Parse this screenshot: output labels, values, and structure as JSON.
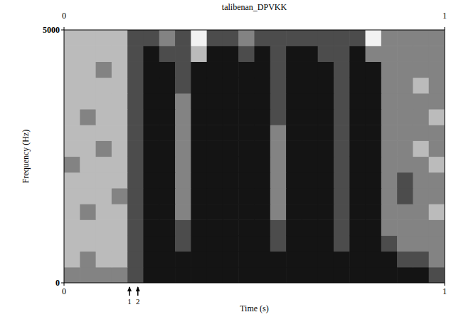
{
  "chart_data": {
    "type": "heatmap",
    "title": "talibenan_DPVKK",
    "x_label": "Time (s)",
    "y_label": "Frequency (Hz)",
    "xlim": [
      0,
      1
    ],
    "xticks": [
      0,
      1
    ],
    "ylim": [
      0,
      5000
    ],
    "yticks": [
      0,
      5000
    ],
    "zlim": [
      0,
      4
    ],
    "markers": [
      {
        "label": "1",
        "x": 0.172
      },
      {
        "label": "2",
        "x": 0.194
      }
    ],
    "cells": [
      [
        2,
        2,
        2,
        2,
        3,
        4,
        4,
        4,
        4,
        4,
        4,
        4,
        4,
        4,
        4,
        4,
        4,
        4,
        4,
        4,
        4,
        4,
        4,
        3
      ],
      [
        1,
        2,
        1,
        1,
        3,
        4,
        4,
        4,
        4,
        4,
        4,
        4,
        4,
        4,
        4,
        4,
        4,
        4,
        4,
        4,
        4,
        3,
        3,
        2
      ],
      [
        1,
        1,
        1,
        1,
        3,
        4,
        4,
        3,
        4,
        4,
        4,
        4,
        4,
        3,
        4,
        4,
        4,
        3,
        4,
        4,
        3,
        2,
        2,
        2
      ],
      [
        1,
        1,
        1,
        1,
        3,
        4,
        4,
        3,
        4,
        4,
        4,
        4,
        4,
        3,
        4,
        4,
        4,
        3,
        4,
        4,
        2,
        2,
        2,
        2
      ],
      [
        1,
        2,
        1,
        1,
        3,
        4,
        4,
        2,
        4,
        4,
        4,
        4,
        4,
        2,
        4,
        4,
        4,
        3,
        4,
        4,
        2,
        2,
        2,
        1
      ],
      [
        1,
        1,
        1,
        2,
        3,
        4,
        4,
        2,
        4,
        4,
        4,
        4,
        4,
        2,
        4,
        4,
        4,
        3,
        4,
        4,
        2,
        3,
        2,
        2
      ],
      [
        1,
        1,
        1,
        1,
        3,
        4,
        4,
        2,
        4,
        4,
        4,
        4,
        4,
        2,
        4,
        4,
        4,
        3,
        4,
        4,
        2,
        3,
        2,
        2
      ],
      [
        2,
        1,
        1,
        1,
        3,
        4,
        4,
        2,
        4,
        4,
        4,
        4,
        4,
        2,
        4,
        4,
        4,
        3,
        4,
        4,
        2,
        2,
        2,
        1
      ],
      [
        1,
        1,
        2,
        1,
        3,
        4,
        4,
        2,
        4,
        4,
        4,
        4,
        4,
        2,
        4,
        4,
        4,
        3,
        4,
        4,
        2,
        2,
        1,
        2
      ],
      [
        1,
        1,
        1,
        1,
        3,
        4,
        4,
        2,
        4,
        4,
        4,
        4,
        4,
        2,
        4,
        4,
        4,
        3,
        4,
        4,
        2,
        2,
        2,
        2
      ],
      [
        1,
        2,
        1,
        1,
        3,
        4,
        4,
        2,
        4,
        4,
        4,
        4,
        4,
        3,
        4,
        4,
        4,
        3,
        4,
        4,
        2,
        2,
        2,
        1
      ],
      [
        1,
        1,
        1,
        1,
        3,
        4,
        4,
        2,
        4,
        4,
        4,
        4,
        4,
        3,
        4,
        4,
        4,
        3,
        4,
        4,
        2,
        2,
        2,
        2
      ],
      [
        1,
        1,
        1,
        1,
        3,
        4,
        4,
        3,
        4,
        4,
        4,
        4,
        4,
        3,
        4,
        4,
        4,
        3,
        4,
        4,
        2,
        2,
        1,
        2
      ],
      [
        1,
        1,
        2,
        1,
        3,
        4,
        4,
        3,
        4,
        4,
        4,
        4,
        4,
        3,
        4,
        4,
        4,
        3,
        4,
        4,
        2,
        2,
        2,
        2
      ],
      [
        1,
        1,
        1,
        1,
        3,
        4,
        3,
        3,
        1,
        4,
        4,
        3,
        4,
        3,
        4,
        4,
        3,
        3,
        4,
        2,
        2,
        2,
        2,
        2
      ],
      [
        1,
        1,
        1,
        1,
        3,
        3,
        2,
        3,
        0,
        3,
        3,
        2,
        3,
        3,
        3,
        3,
        3,
        3,
        3,
        0,
        2,
        2,
        2,
        2
      ]
    ]
  }
}
